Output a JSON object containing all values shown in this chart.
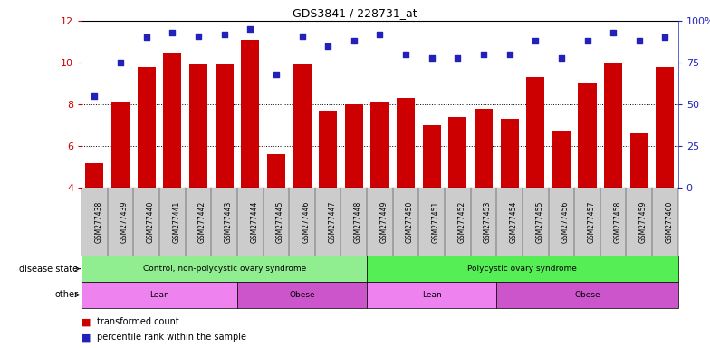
{
  "title": "GDS3841 / 228731_at",
  "samples": [
    "GSM277438",
    "GSM277439",
    "GSM277440",
    "GSM277441",
    "GSM277442",
    "GSM277443",
    "GSM277444",
    "GSM277445",
    "GSM277446",
    "GSM277447",
    "GSM277448",
    "GSM277449",
    "GSM277450",
    "GSM277451",
    "GSM277452",
    "GSM277453",
    "GSM277454",
    "GSM277455",
    "GSM277456",
    "GSM277457",
    "GSM277458",
    "GSM277459",
    "GSM277460"
  ],
  "bar_values": [
    5.2,
    8.1,
    9.8,
    10.5,
    9.9,
    9.9,
    11.1,
    5.6,
    9.9,
    7.7,
    8.0,
    8.1,
    8.3,
    7.0,
    7.4,
    7.8,
    7.3,
    9.3,
    6.7,
    9.0,
    10.0,
    6.6,
    9.8
  ],
  "dot_values": [
    55,
    75,
    90,
    93,
    91,
    92,
    95,
    68,
    91,
    85,
    88,
    92,
    80,
    78,
    78,
    80,
    80,
    88,
    78,
    88,
    93,
    88,
    90
  ],
  "bar_color": "#cc0000",
  "dot_color": "#2222bb",
  "ylim_left": [
    4,
    12
  ],
  "ylim_right": [
    0,
    100
  ],
  "yticks_left": [
    4,
    6,
    8,
    10,
    12
  ],
  "yticks_right": [
    0,
    25,
    50,
    75,
    100
  ],
  "ytick_labels_right": [
    "0",
    "25",
    "50",
    "75",
    "100%"
  ],
  "disease_state_groups": [
    {
      "label": "Control, non-polycystic ovary syndrome",
      "start": 0,
      "end": 10,
      "color": "#90ee90"
    },
    {
      "label": "Polycystic ovary syndrome",
      "start": 11,
      "end": 22,
      "color": "#55ee55"
    }
  ],
  "other_groups": [
    {
      "label": "Lean",
      "start": 0,
      "end": 5,
      "color": "#ee82ee"
    },
    {
      "label": "Obese",
      "start": 6,
      "end": 10,
      "color": "#cc55cc"
    },
    {
      "label": "Lean",
      "start": 11,
      "end": 15,
      "color": "#ee82ee"
    },
    {
      "label": "Obese",
      "start": 16,
      "end": 22,
      "color": "#cc55cc"
    }
  ],
  "legend_items": [
    {
      "label": "transformed count",
      "color": "#cc0000"
    },
    {
      "label": "percentile rank within the sample",
      "color": "#2222bb"
    }
  ],
  "left_labels": [
    "disease state",
    "other"
  ],
  "tick_bg_color": "#cccccc"
}
